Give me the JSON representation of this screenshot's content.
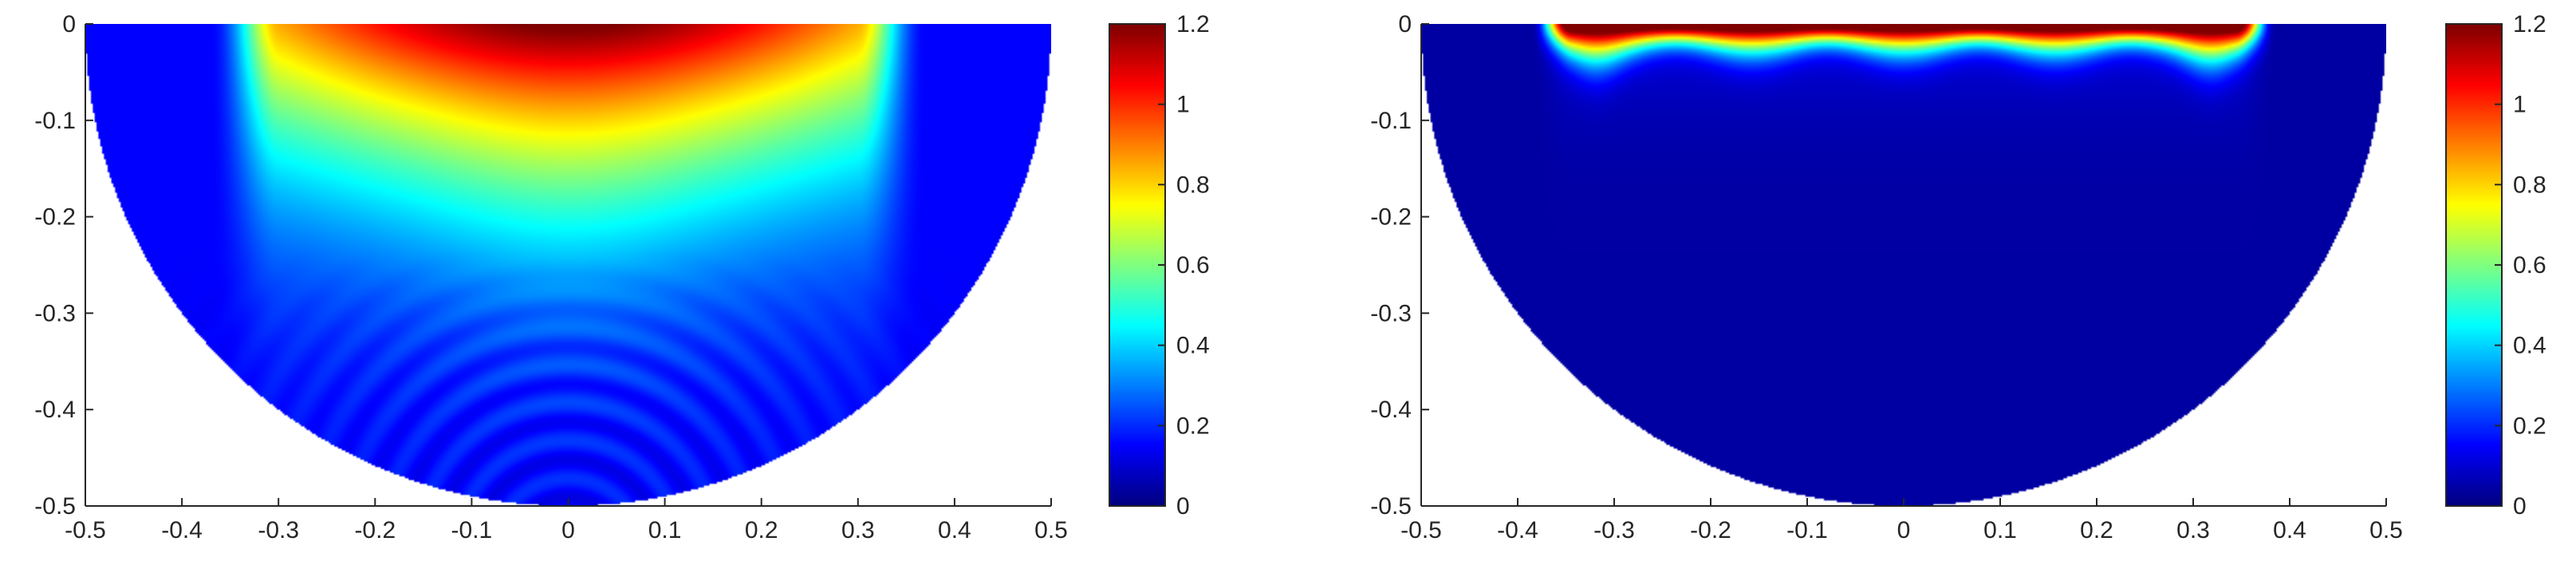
{
  "chart_data": [
    {
      "type": "heatmap",
      "title": "",
      "xlabel": "",
      "ylabel": "",
      "xlim": [
        -0.5,
        0.5
      ],
      "ylim": [
        -0.5,
        0
      ],
      "xticks": [
        "-0.5",
        "-0.4",
        "-0.3",
        "-0.2",
        "-0.1",
        "0",
        "0.1",
        "0.2",
        "0.3",
        "0.4",
        "0.5"
      ],
      "yticks": [
        "0",
        "-0.1",
        "-0.2",
        "-0.3",
        "-0.4",
        "-0.5"
      ],
      "domain": "lower half-disk, radius 0.5, centered at (0, 0)",
      "source_interval_x": [
        -0.37,
        0.37
      ],
      "colormap": "jet",
      "colorbar": {
        "range": [
          0,
          1.2
        ],
        "ticks": [
          "1.2",
          "1",
          "0.8",
          "0.6",
          "0.4",
          "0.2",
          "0"
        ]
      },
      "field": "smooth diffuse lobe: max about 1.2 at top center, decaying with depth to about 0.2; weak concentric interference ripples near depth -0.35 to -0.5",
      "grid": false,
      "legend": "none"
    },
    {
      "type": "heatmap",
      "title": "",
      "xlabel": "",
      "ylabel": "",
      "xlim": [
        -0.5,
        0.5
      ],
      "ylim": [
        -0.5,
        0
      ],
      "xticks": [
        "-0.5",
        "-0.4",
        "-0.3",
        "-0.2",
        "-0.1",
        "0",
        "0.1",
        "0.2",
        "0.3",
        "0.4",
        "0.5"
      ],
      "yticks": [
        "0",
        "-0.1",
        "-0.2",
        "-0.3",
        "-0.4",
        "-0.5"
      ],
      "domain": "lower half-disk, radius 0.5, centered at (0, 0)",
      "source_interval_x": [
        -0.37,
        0.37
      ],
      "colormap": "jet",
      "colorbar": {
        "range": [
          0,
          1.2
        ],
        "ticks": [
          "1.2",
          "1",
          "0.8",
          "0.6",
          "0.4",
          "0.2",
          "0"
        ]
      },
      "field": "thin boundary layer: values about 1.2 within a depth of about 0.02 below the surface, decaying to near 0 by depth -0.1; near 0 elsewhere",
      "grid": false,
      "legend": "none"
    }
  ]
}
